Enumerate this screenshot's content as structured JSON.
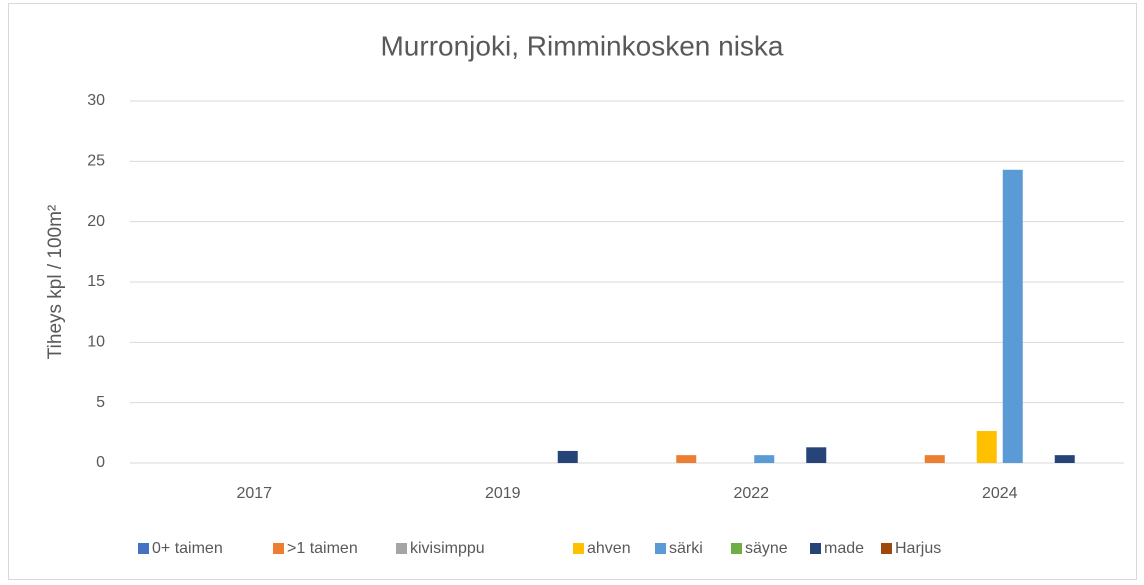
{
  "chart_data": {
    "type": "bar",
    "title": "Murronjoki, Rimminkosken niska",
    "y_label": "Tiheys kpl / 100m²",
    "categories": [
      "2017",
      "2019",
      "2022",
      "2024"
    ],
    "series": [
      {
        "name": "0+ taimen",
        "color": "#4472c4",
        "values": [
          0,
          0,
          0,
          0
        ]
      },
      {
        "name": ">1 taimen",
        "color": "#ed7d31",
        "values": [
          0,
          0,
          0.65,
          0.65
        ]
      },
      {
        "name": "kivisimppu",
        "color": "#a5a5a5",
        "values": [
          0,
          0,
          0,
          0
        ]
      },
      {
        "name": "ahven",
        "color": "#ffc000",
        "values": [
          0,
          0,
          0,
          2.65
        ]
      },
      {
        "name": "särki",
        "color": "#5b9bd5",
        "values": [
          0,
          0,
          0.65,
          24.3
        ]
      },
      {
        "name": "säyne",
        "color": "#70ad47",
        "values": [
          0,
          0,
          0,
          0
        ]
      },
      {
        "name": "made",
        "color": "#264478",
        "values": [
          0,
          1.0,
          1.3,
          0.65
        ]
      },
      {
        "name": "Harjus",
        "color": "#9e480e",
        "values": [
          0,
          0,
          0,
          0
        ]
      }
    ],
    "ylim": [
      0,
      30
    ],
    "yticks": [
      0,
      5,
      10,
      15,
      20,
      25,
      30
    ],
    "grid": true,
    "legend": "bottom"
  }
}
